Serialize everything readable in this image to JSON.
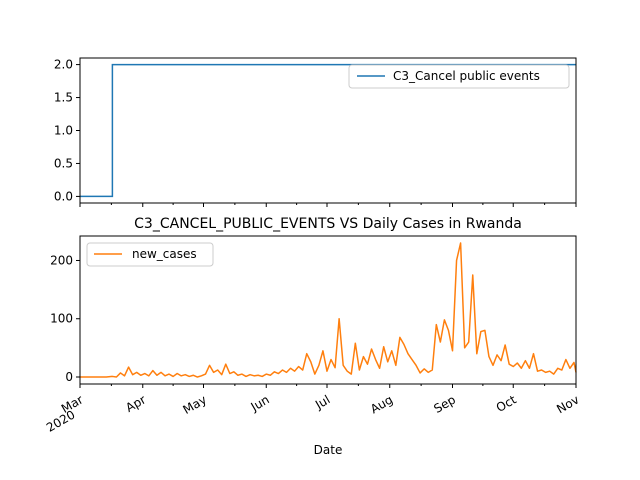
{
  "chart_data": [
    {
      "type": "line",
      "title": "",
      "xlabel": "",
      "ylabel": "",
      "ylim": [
        -0.1,
        2.1
      ],
      "yticks": [
        "0.0",
        "0.5",
        "1.0",
        "1.5",
        "2.0"
      ],
      "ytick_values": [
        0,
        0.5,
        1.0,
        1.5,
        2.0
      ],
      "legend_location": "upper right",
      "series": [
        {
          "name": "C3_Cancel public events",
          "color": "#1f77b4",
          "x": [
            "2020-03-01",
            "2020-03-17",
            "2020-03-17",
            "2020-11-01"
          ],
          "y": [
            0,
            0,
            2,
            2
          ]
        }
      ]
    },
    {
      "type": "line",
      "title": "C3_CANCEL_PUBLIC_EVENTS VS Daily Cases in Rwanda",
      "xlabel": "Date",
      "ylabel": "",
      "ylim": [
        -12,
        242
      ],
      "yticks": [
        "0",
        "100",
        "200"
      ],
      "ytick_values": [
        0,
        100,
        200
      ],
      "xlim": [
        "2020-03-01",
        "2020-11-01"
      ],
      "xtick_labels": [
        {
          "date": "2020-03-01",
          "label": "Mar",
          "sublabel": "2020"
        },
        {
          "date": "2020-04-01",
          "label": "Apr",
          "sublabel": ""
        },
        {
          "date": "2020-05-01",
          "label": "May",
          "sublabel": ""
        },
        {
          "date": "2020-06-01",
          "label": "Jun",
          "sublabel": ""
        },
        {
          "date": "2020-07-01",
          "label": "Jul",
          "sublabel": ""
        },
        {
          "date": "2020-08-01",
          "label": "Aug",
          "sublabel": ""
        },
        {
          "date": "2020-09-01",
          "label": "Sep",
          "sublabel": ""
        },
        {
          "date": "2020-10-01",
          "label": "Oct",
          "sublabel": ""
        },
        {
          "date": "2020-11-01",
          "label": "Nov",
          "sublabel": ""
        }
      ],
      "legend_location": "upper left",
      "series": [
        {
          "name": "new_cases",
          "color": "#ff7f0e",
          "x": [
            "2020-03-01",
            "2020-03-14",
            "2020-03-17",
            "2020-03-19",
            "2020-03-21",
            "2020-03-23",
            "2020-03-25",
            "2020-03-27",
            "2020-03-29",
            "2020-03-31",
            "2020-04-02",
            "2020-04-04",
            "2020-04-06",
            "2020-04-08",
            "2020-04-10",
            "2020-04-12",
            "2020-04-14",
            "2020-04-16",
            "2020-04-18",
            "2020-04-20",
            "2020-04-22",
            "2020-04-24",
            "2020-04-26",
            "2020-04-28",
            "2020-04-30",
            "2020-05-02",
            "2020-05-04",
            "2020-05-06",
            "2020-05-08",
            "2020-05-10",
            "2020-05-12",
            "2020-05-14",
            "2020-05-16",
            "2020-05-18",
            "2020-05-20",
            "2020-05-22",
            "2020-05-24",
            "2020-05-26",
            "2020-05-28",
            "2020-05-30",
            "2020-06-01",
            "2020-06-03",
            "2020-06-05",
            "2020-06-07",
            "2020-06-09",
            "2020-06-11",
            "2020-06-13",
            "2020-06-15",
            "2020-06-17",
            "2020-06-19",
            "2020-06-21",
            "2020-06-23",
            "2020-06-25",
            "2020-06-27",
            "2020-06-29",
            "2020-07-01",
            "2020-07-03",
            "2020-07-05",
            "2020-07-07",
            "2020-07-09",
            "2020-07-11",
            "2020-07-13",
            "2020-07-15",
            "2020-07-17",
            "2020-07-19",
            "2020-07-21",
            "2020-07-23",
            "2020-07-25",
            "2020-07-27",
            "2020-07-29",
            "2020-07-31",
            "2020-08-02",
            "2020-08-04",
            "2020-08-06",
            "2020-08-08",
            "2020-08-10",
            "2020-08-12",
            "2020-08-14",
            "2020-08-16",
            "2020-08-18",
            "2020-08-20",
            "2020-08-22",
            "2020-08-24",
            "2020-08-26",
            "2020-08-28",
            "2020-08-30",
            "2020-09-01",
            "2020-09-03",
            "2020-09-05",
            "2020-09-07",
            "2020-09-09",
            "2020-09-11",
            "2020-09-13",
            "2020-09-15",
            "2020-09-17",
            "2020-09-19",
            "2020-09-21",
            "2020-09-23",
            "2020-09-25",
            "2020-09-27",
            "2020-09-29",
            "2020-10-01",
            "2020-10-03",
            "2020-10-05",
            "2020-10-07",
            "2020-10-09",
            "2020-10-11",
            "2020-10-13",
            "2020-10-15",
            "2020-10-17",
            "2020-10-19",
            "2020-10-21",
            "2020-10-23",
            "2020-10-25",
            "2020-10-27",
            "2020-10-29",
            "2020-10-31",
            "2020-11-01"
          ],
          "y": [
            0,
            0,
            1,
            0,
            7,
            2,
            17,
            4,
            8,
            3,
            6,
            2,
            11,
            3,
            8,
            2,
            5,
            1,
            6,
            2,
            4,
            1,
            3,
            0,
            2,
            5,
            20,
            8,
            12,
            4,
            22,
            6,
            9,
            3,
            5,
            1,
            4,
            2,
            3,
            1,
            5,
            3,
            9,
            6,
            12,
            8,
            15,
            10,
            18,
            12,
            40,
            26,
            5,
            20,
            45,
            10,
            30,
            16,
            100,
            20,
            10,
            5,
            58,
            12,
            35,
            22,
            48,
            30,
            15,
            52,
            26,
            45,
            20,
            68,
            56,
            40,
            30,
            20,
            7,
            14,
            8,
            12,
            90,
            60,
            98,
            80,
            45,
            200,
            230,
            50,
            60,
            175,
            40,
            78,
            80,
            35,
            20,
            38,
            28,
            55,
            22,
            18,
            24,
            15,
            28,
            15,
            40,
            10,
            12,
            8,
            10,
            5,
            15,
            12,
            30,
            15,
            25,
            8
          ]
        }
      ]
    }
  ]
}
